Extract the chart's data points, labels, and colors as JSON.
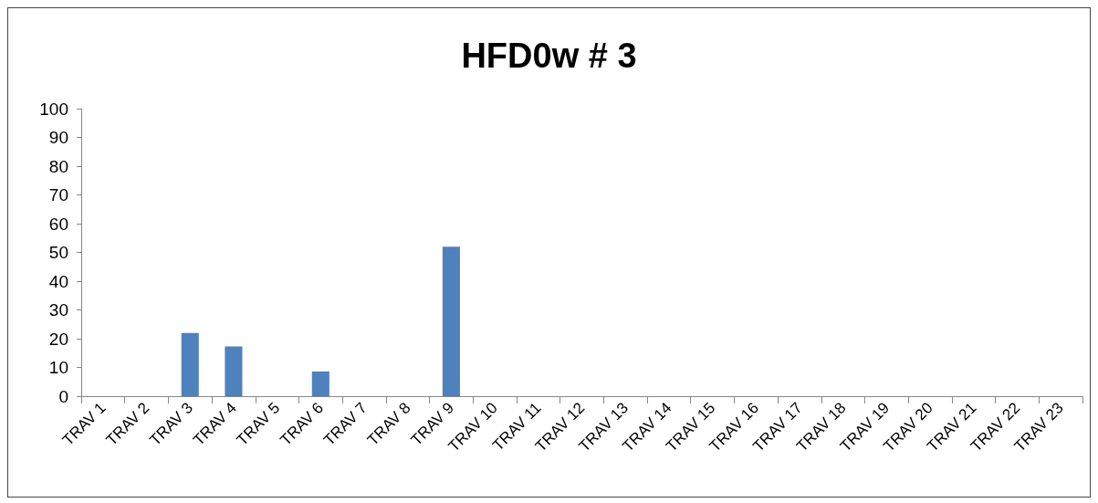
{
  "chart_data": {
    "type": "bar",
    "title": "HFD0w # 3",
    "categories": [
      "TRAV 1",
      "TRAV 2",
      "TRAV 3",
      "TRAV 4",
      "TRAV 5",
      "TRAV 6",
      "TRAV 7",
      "TRAV 8",
      "TRAV 9",
      "TRAV 10",
      "TRAV 11",
      "TRAV 12",
      "TRAV 13",
      "TRAV 14",
      "TRAV 15",
      "TRAV 16",
      "TRAV 17",
      "TRAV 18",
      "TRAV 19",
      "TRAV 20",
      "TRAV 21",
      "TRAV 22",
      "TRAV 23"
    ],
    "values": [
      0,
      0,
      22,
      17.3,
      0,
      8.6,
      0,
      0,
      52,
      0,
      0,
      0,
      0,
      0,
      0,
      0,
      0,
      0,
      0,
      0,
      0,
      0,
      0
    ],
    "color": "#4f81bd",
    "ylim": [
      0,
      100
    ],
    "yticks": [
      0,
      10,
      20,
      30,
      40,
      50,
      60,
      70,
      80,
      90,
      100
    ],
    "grid": false
  }
}
